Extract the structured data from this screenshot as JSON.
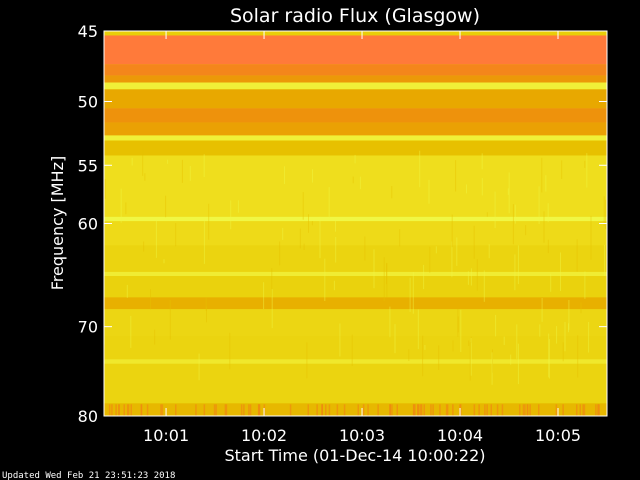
{
  "chart_data": {
    "type": "heatmap",
    "title": "Solar radio Flux (Glasgow)",
    "xlabel": "Start Time (01-Dec-14 10:00:22)",
    "ylabel": "Frequency [MHz]",
    "start_time": "10:00:22",
    "xlim": [
      "10:00:22",
      "10:05:30"
    ],
    "ylim": [
      80,
      45
    ],
    "y_scale": "log",
    "x_ticks": [
      "10:01",
      "10:02",
      "10:03",
      "10:04",
      "10:05"
    ],
    "y_ticks": [
      45,
      50,
      55,
      60,
      70,
      80
    ],
    "bands": [
      {
        "from": 45.0,
        "to": 45.3,
        "level": 0.35
      },
      {
        "from": 45.3,
        "to": 47.3,
        "level": 1.0
      },
      {
        "from": 47.3,
        "to": 48.1,
        "level": 0.85
      },
      {
        "from": 48.1,
        "to": 48.6,
        "level": 0.7
      },
      {
        "from": 48.6,
        "to": 49.1,
        "level": 0.1
      },
      {
        "from": 49.1,
        "to": 50.5,
        "level": 0.6
      },
      {
        "from": 50.5,
        "to": 51.6,
        "level": 0.75
      },
      {
        "from": 51.6,
        "to": 52.6,
        "level": 0.65
      },
      {
        "from": 52.6,
        "to": 53.0,
        "level": 0.1
      },
      {
        "from": 53.0,
        "to": 54.2,
        "level": 0.45
      },
      {
        "from": 54.2,
        "to": 59.4,
        "level": 0.22
      },
      {
        "from": 59.4,
        "to": 59.8,
        "level": 0.05
      },
      {
        "from": 59.8,
        "to": 62.0,
        "level": 0.25
      },
      {
        "from": 62.0,
        "to": 64.5,
        "level": 0.3
      },
      {
        "from": 64.5,
        "to": 64.9,
        "level": 0.12
      },
      {
        "from": 64.9,
        "to": 67.0,
        "level": 0.32
      },
      {
        "from": 67.0,
        "to": 68.2,
        "level": 0.55
      },
      {
        "from": 68.2,
        "to": 71.0,
        "level": 0.28
      },
      {
        "from": 71.0,
        "to": 73.5,
        "level": 0.3
      },
      {
        "from": 73.5,
        "to": 74.0,
        "level": 0.15
      },
      {
        "from": 74.0,
        "to": 78.5,
        "level": 0.3
      },
      {
        "from": 78.5,
        "to": 80.0,
        "level": 0.5
      }
    ],
    "colormap": [
      "#f0ff50",
      "#f0e020",
      "#e6c800",
      "#e8a800",
      "#f08a10",
      "#ff7a3a"
    ]
  },
  "footer": {
    "updated": "Updated Wed Feb 21 23:51:23 2018"
  }
}
